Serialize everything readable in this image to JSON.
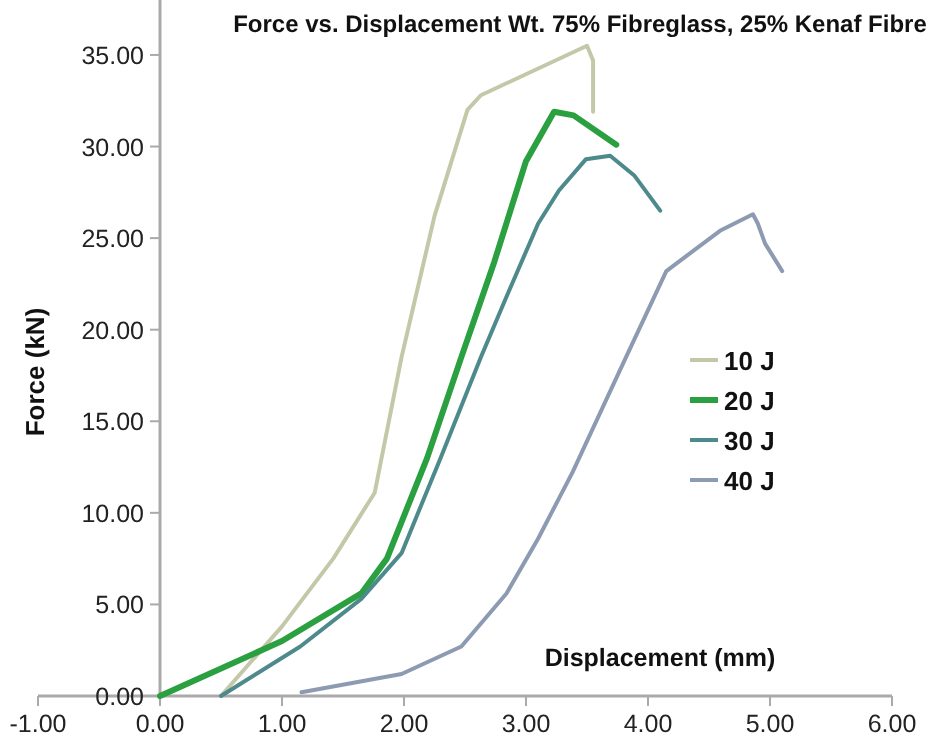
{
  "chart_data": {
    "type": "line",
    "title": "Force vs. Displacement Wt. 75% Fibreglass, 25% Kenaf Fibre",
    "xlabel": "Displacement (mm)",
    "ylabel": "Force (kN)",
    "xlim": [
      -1,
      6
    ],
    "xticks": [
      {
        "value": -1,
        "label": "-1.00"
      },
      {
        "value": 0,
        "label": "0.00"
      },
      {
        "value": 1,
        "label": "1.00"
      },
      {
        "value": 2,
        "label": "2.00"
      },
      {
        "value": 3,
        "label": "3.00"
      },
      {
        "value": 4,
        "label": "4.00"
      },
      {
        "value": 5,
        "label": "5.00"
      },
      {
        "value": 6,
        "label": "6.00"
      }
    ],
    "ylim": [
      0,
      38
    ],
    "yticks": [
      {
        "value": 0,
        "label": "0.00"
      },
      {
        "value": 5,
        "label": "5.00"
      },
      {
        "value": 10,
        "label": "10.00"
      },
      {
        "value": 15,
        "label": "15.00"
      },
      {
        "value": 20,
        "label": "20.00"
      },
      {
        "value": 25,
        "label": "25.00"
      },
      {
        "value": 30,
        "label": "30.00"
      },
      {
        "value": 35,
        "label": "35.00"
      }
    ],
    "grid": false,
    "legend": "right",
    "marker": "none",
    "line_style": "solid",
    "series": [
      {
        "name": "10 J",
        "color": "#c5c8a8",
        "x": [
          0.5,
          1.0,
          1.42,
          1.76,
          1.98,
          2.25,
          2.52,
          2.63,
          3.5,
          3.55,
          3.55
        ],
        "values": [
          0,
          3.8,
          7.5,
          11.1,
          18.5,
          26.2,
          32,
          32.8,
          35.5,
          34.7,
          31.9
        ]
      },
      {
        "name": "20 J",
        "color": "#2aa040",
        "x": [
          0,
          1,
          1.65,
          1.86,
          2.19,
          2.47,
          2.74,
          3.0,
          3.23,
          3.39,
          3.74
        ],
        "values": [
          0,
          3,
          5.6,
          7.5,
          13,
          18.5,
          23.7,
          29.2,
          31.9,
          31.7,
          30.1
        ]
      },
      {
        "name": "30 J",
        "color": "#4e8a8c",
        "x": [
          0.5,
          1.15,
          1.65,
          1.98,
          2.3,
          2.63,
          2.84,
          3.1,
          3.27,
          3.49,
          3.69,
          3.89,
          4.1
        ],
        "values": [
          0,
          2.7,
          5.3,
          7.8,
          13,
          18.5,
          21.8,
          25.8,
          27.6,
          29.3,
          29.5,
          28.4,
          26.5
        ]
      },
      {
        "name": "40 J",
        "color": "#8c9ab2",
        "x": [
          1.16,
          1.98,
          2.47,
          2.84,
          3.1,
          3.38,
          3.82,
          4.15,
          4.59,
          4.86,
          4.9,
          4.96,
          5.1
        ],
        "values": [
          0.2,
          1.2,
          2.7,
          5.6,
          8.6,
          12.2,
          18.5,
          23.2,
          25.4,
          26.3,
          25.8,
          24.7,
          23.2
        ]
      }
    ]
  }
}
